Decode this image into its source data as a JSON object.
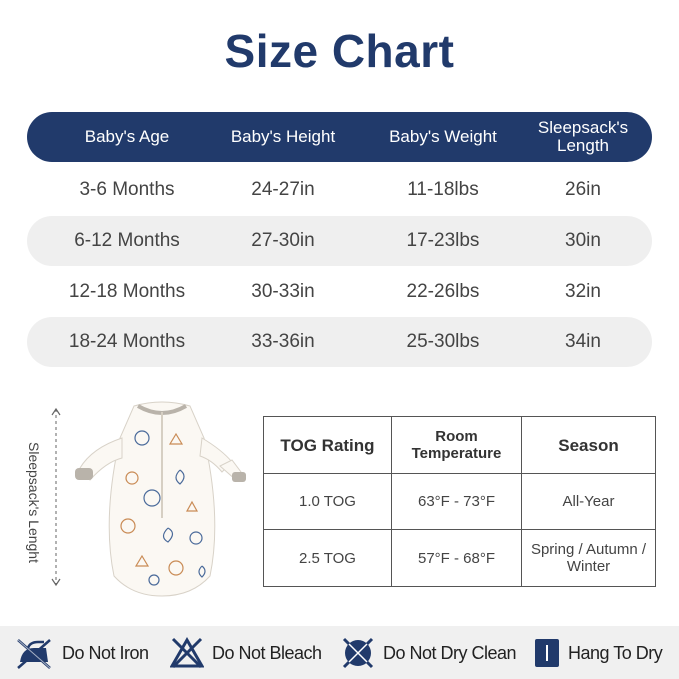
{
  "title": "Size Chart",
  "size_table": {
    "headers": [
      "Baby's Age",
      "Baby's Height",
      "Baby's Weight",
      "Sleepsack's",
      "Length"
    ],
    "rows": [
      [
        "3-6 Months",
        "24-27in",
        "11-18lbs",
        "26in"
      ],
      [
        "6-12 Months",
        "27-30in",
        "17-23lbs",
        "30in"
      ],
      [
        "12-18 Months",
        "30-33in",
        "22-26lbs",
        "32in"
      ],
      [
        "18-24 Months",
        "33-36in",
        "25-30lbs",
        "34in"
      ]
    ]
  },
  "side_label": "Sleepsack's Lenght",
  "tog_table": {
    "headers": [
      "TOG Rating",
      "Room",
      "Temperature",
      "Season"
    ],
    "rows": [
      [
        "1.0 TOG",
        "63°F - 73°F",
        "All-Year",
        ""
      ],
      [
        "2.5 TOG",
        "57°F - 68°F",
        "Spring / Autumn /",
        "Winter"
      ]
    ]
  },
  "care": {
    "items": [
      {
        "label": "Do Not Iron",
        "icon": "no-iron-icon"
      },
      {
        "label": "Do Not Bleach",
        "icon": "no-bleach-icon"
      },
      {
        "label": "Do Not Dry Clean",
        "icon": "no-dry-clean-icon"
      },
      {
        "label": "Hang To Dry",
        "icon": "hang-dry-icon"
      }
    ]
  },
  "colors": {
    "navy": "#213a6b",
    "row_shade": "#efefef",
    "care_bg": "#f0f0f0"
  }
}
